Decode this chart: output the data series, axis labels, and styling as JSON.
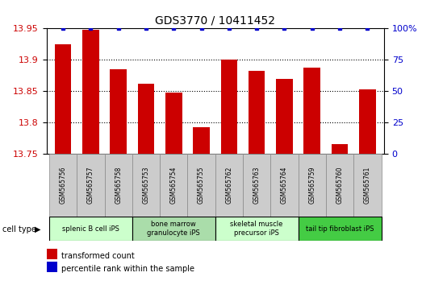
{
  "title": "GDS3770 / 10411452",
  "samples": [
    "GSM565756",
    "GSM565757",
    "GSM565758",
    "GSM565753",
    "GSM565754",
    "GSM565755",
    "GSM565762",
    "GSM565763",
    "GSM565764",
    "GSM565759",
    "GSM565760",
    "GSM565761"
  ],
  "bar_values": [
    13.925,
    13.948,
    13.885,
    13.862,
    13.848,
    13.792,
    13.9,
    13.882,
    13.87,
    13.888,
    13.765,
    13.853
  ],
  "percentile_values": [
    100,
    100,
    100,
    100,
    100,
    100,
    100,
    100,
    100,
    100,
    100,
    100
  ],
  "bar_color": "#cc0000",
  "percentile_color": "#0000cc",
  "ylim_left": [
    13.75,
    13.95
  ],
  "ylim_right": [
    0,
    100
  ],
  "yticks_left": [
    13.75,
    13.8,
    13.85,
    13.9,
    13.95
  ],
  "yticks_right": [
    0,
    25,
    50,
    75,
    100
  ],
  "cell_type_groups": [
    {
      "label": "splenic B cell iPS",
      "start": 0,
      "end": 3,
      "color": "#ccffcc"
    },
    {
      "label": "bone marrow\ngranulocyte iPS",
      "start": 3,
      "end": 6,
      "color": "#aaddaa"
    },
    {
      "label": "skeletal muscle\nprecursor iPS",
      "start": 6,
      "end": 9,
      "color": "#ccffcc"
    },
    {
      "label": "tail tip fibroblast iPS",
      "start": 9,
      "end": 12,
      "color": "#44cc44"
    }
  ],
  "legend_red_label": "transformed count",
  "legend_blue_label": "percentile rank within the sample",
  "cell_type_label": "cell type",
  "sample_box_color": "#cccccc"
}
